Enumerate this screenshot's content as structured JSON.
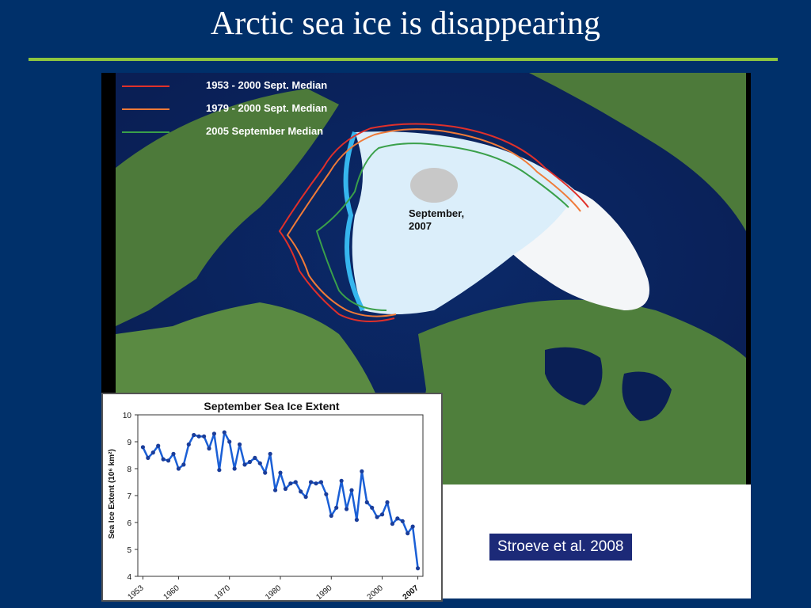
{
  "slide": {
    "title": "Arctic sea ice is disappearing",
    "citation": "Stroeve et al. 2008"
  },
  "map": {
    "legend": [
      {
        "label": "1953 - 2000  Sept. Median",
        "color": "#e0302a"
      },
      {
        "label": "1979 - 2000 Sept. Median",
        "color": "#f07a38"
      },
      {
        "label": "2005 September Median",
        "color": "#3aa04a"
      }
    ],
    "ice_label_line1": "September,",
    "ice_label_line2": "2007"
  },
  "chart_data": {
    "type": "line",
    "title": "September Sea Ice Extent",
    "ylabel": "Sea Ice Extent  (10⁶ km²)",
    "xlabel": "",
    "ylim": [
      4,
      10
    ],
    "xlim": [
      1952,
      2008
    ],
    "yticks": [
      4,
      5,
      6,
      7,
      8,
      9,
      10
    ],
    "xticks": [
      "1953",
      "1960",
      "1970",
      "1980",
      "1990",
      "2000",
      "2007"
    ],
    "series": [
      {
        "color": "#1a5fd6",
        "x": [
          1953,
          1954,
          1955,
          1956,
          1957,
          1958,
          1959,
          1960,
          1961,
          1962,
          1963,
          1964,
          1965,
          1966,
          1967,
          1968,
          1969,
          1970,
          1971,
          1972,
          1973,
          1974,
          1975,
          1976,
          1977,
          1978,
          1979,
          1980,
          1981,
          1982,
          1983,
          1984,
          1985,
          1986,
          1987,
          1988,
          1989,
          1990,
          1991,
          1992,
          1993,
          1994,
          1995,
          1996,
          1997,
          1998,
          1999,
          2000,
          2001,
          2002,
          2003,
          2004,
          2005,
          2006,
          2007
        ],
        "values": [
          8.8,
          8.4,
          8.6,
          8.85,
          8.35,
          8.3,
          8.55,
          8.0,
          8.15,
          8.9,
          9.25,
          9.2,
          9.2,
          8.75,
          9.3,
          7.95,
          9.35,
          9.0,
          8.0,
          8.9,
          8.15,
          8.25,
          8.4,
          8.2,
          7.85,
          8.55,
          7.2,
          7.85,
          7.25,
          7.45,
          7.5,
          7.15,
          6.95,
          7.5,
          7.45,
          7.5,
          7.05,
          6.25,
          6.55,
          7.55,
          6.5,
          7.2,
          6.1,
          7.9,
          6.75,
          6.55,
          6.2,
          6.3,
          6.75,
          5.95,
          6.15,
          6.05,
          5.6,
          5.85,
          4.3
        ]
      }
    ]
  }
}
